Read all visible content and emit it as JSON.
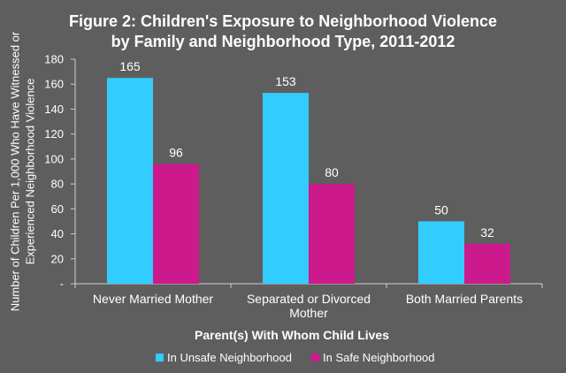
{
  "chart_data": {
    "type": "bar",
    "title_lines": [
      "Figure 2: Children's Exposure to Neighborhood Violence",
      "by Family and Neighborhood Type, 2011-2012"
    ],
    "categories": [
      [
        "Never Married Mother"
      ],
      [
        "Separated or Divorced",
        "Mother"
      ],
      [
        "Both Married Parents"
      ]
    ],
    "series": [
      {
        "name": "In Unsafe Neighborhood",
        "values": [
          165,
          153,
          50
        ],
        "color": "#33ccff"
      },
      {
        "name": "In Safe Neighborhood",
        "values": [
          96,
          80,
          32
        ],
        "color": "#cc1a8c"
      }
    ],
    "ylabel_lines": [
      "Number of Children Per 1,000 Who Have Witnessed or",
      "Experienced Neighborhood Violence"
    ],
    "xlabel": "Parent(s) With Whom Child Lives",
    "ylim": [
      0,
      180
    ],
    "yticks": [
      0,
      20,
      40,
      60,
      80,
      100,
      120,
      140,
      160,
      180
    ],
    "ytick_labels": [
      "-",
      "20",
      "40",
      "60",
      "80",
      "100",
      "120",
      "140",
      "160",
      "180"
    ],
    "grid": false,
    "legend_position": "bottom",
    "data_labels": true
  }
}
